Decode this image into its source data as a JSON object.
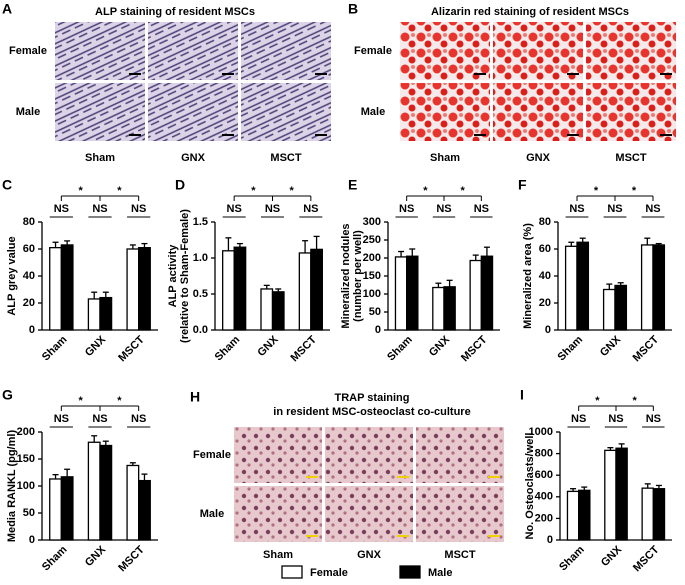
{
  "chart_data": [
    {
      "type": "bar",
      "panel_label": "C",
      "ylabel": "ALP grey value",
      "categories": [
        "Sham",
        "GNX",
        "MSCT"
      ],
      "series": [
        {
          "name": "Female",
          "color": "#ffffff",
          "values": [
            61,
            23,
            60
          ],
          "errors": [
            4,
            5,
            3
          ]
        },
        {
          "name": "Male",
          "color": "#000000",
          "values": [
            63,
            24,
            61
          ],
          "errors": [
            3,
            4,
            3
          ]
        }
      ],
      "ylim": [
        0,
        80
      ],
      "yticks": [
        0,
        20,
        40,
        60,
        80
      ],
      "ns_label": "NS",
      "sig_label": "*"
    },
    {
      "type": "bar",
      "panel_label": "D",
      "ylabel": [
        "ALP activity",
        "(relative to Sham-Female)"
      ],
      "categories": [
        "Sham",
        "GNX",
        "MSCT"
      ],
      "series": [
        {
          "name": "Female",
          "color": "#ffffff",
          "values": [
            1.1,
            0.57,
            1.07
          ],
          "errors": [
            0.18,
            0.05,
            0.17
          ]
        },
        {
          "name": "Male",
          "color": "#000000",
          "values": [
            1.15,
            0.53,
            1.12
          ],
          "errors": [
            0.05,
            0.04,
            0.18
          ]
        }
      ],
      "ylim": [
        0,
        1.5
      ],
      "yticks": [
        {
          "value": 0,
          "label": "0.0"
        },
        0.5,
        {
          "value": 1,
          "label": "1.0"
        },
        1.5
      ],
      "ns_label": "NS",
      "sig_label": "*"
    },
    {
      "type": "bar",
      "panel_label": "E",
      "ylabel": [
        "Mineralized nodules",
        "(number per well)"
      ],
      "categories": [
        "Sham",
        "GNX",
        "MSCT"
      ],
      "series": [
        {
          "name": "Female",
          "color": "#ffffff",
          "values": [
            203,
            118,
            193
          ],
          "errors": [
            15,
            12,
            15
          ]
        },
        {
          "name": "Male",
          "color": "#000000",
          "values": [
            205,
            120,
            205
          ],
          "errors": [
            20,
            18,
            25
          ]
        }
      ],
      "ylim": [
        0,
        300
      ],
      "yticks": [
        0,
        50,
        100,
        150,
        200,
        250,
        300
      ],
      "ns_label": "NS",
      "sig_label": "*"
    },
    {
      "type": "bar",
      "panel_label": "F",
      "ylabel": "Mineralized area (%)",
      "categories": [
        "Sham",
        "GNX",
        "MSCT"
      ],
      "series": [
        {
          "name": "Female",
          "color": "#ffffff",
          "values": [
            62,
            30,
            63
          ],
          "errors": [
            3,
            4,
            5
          ]
        },
        {
          "name": "Male",
          "color": "#000000",
          "values": [
            65,
            33,
            63
          ],
          "errors": [
            3,
            2,
            1
          ]
        }
      ],
      "ylim": [
        0,
        80
      ],
      "yticks": [
        0,
        20,
        40,
        60,
        80
      ],
      "ns_label": "NS",
      "sig_label": "*"
    },
    {
      "type": "bar",
      "panel_label": "G",
      "ylabel": "Media RANKL (pg/ml)",
      "categories": [
        "Sham",
        "GNX",
        "MSCT"
      ],
      "series": [
        {
          "name": "Female",
          "color": "#ffffff",
          "values": [
            113,
            181,
            138
          ],
          "errors": [
            8,
            12,
            5
          ]
        },
        {
          "name": "Male",
          "color": "#000000",
          "values": [
            117,
            175,
            110
          ],
          "errors": [
            14,
            8,
            12
          ]
        }
      ],
      "ylim": [
        0,
        200
      ],
      "yticks": [
        0,
        50,
        100,
        150,
        200
      ],
      "ns_label": "NS",
      "sig_label": "*"
    },
    {
      "type": "bar",
      "panel_label": "I",
      "ylabel": "No. Osteoclasts/well",
      "categories": [
        "Sham",
        "GNX",
        "MSCT"
      ],
      "series": [
        {
          "name": "Female",
          "color": "#ffffff",
          "values": [
            450,
            830,
            480
          ],
          "errors": [
            25,
            25,
            40
          ]
        },
        {
          "name": "Male",
          "color": "#000000",
          "values": [
            460,
            850,
            475
          ],
          "errors": [
            30,
            40,
            30
          ]
        }
      ],
      "ylim": [
        0,
        1000
      ],
      "yticks": [
        0,
        200,
        400,
        600,
        800,
        1000
      ],
      "ns_label": "NS",
      "sig_label": "*"
    }
  ],
  "image_panels": [
    {
      "label": "A",
      "title": [
        "ALP staining of resident MSCs"
      ],
      "rows": [
        "Female",
        "Male"
      ],
      "columns": [
        "Sham",
        "GNX",
        "MSCT"
      ]
    },
    {
      "label": "B",
      "title": [
        "Alizarin red staining of resident MSCs"
      ],
      "rows": [
        "Female",
        "Male"
      ],
      "columns": [
        "Sham",
        "GNX",
        "MSCT"
      ]
    },
    {
      "label": "H",
      "title": [
        "TRAP staining",
        "in resident MSC-osteoclast co-culture"
      ],
      "rows": [
        "Female",
        "Male"
      ],
      "columns": [
        "Sham",
        "GNX",
        "MSCT"
      ]
    }
  ]
}
